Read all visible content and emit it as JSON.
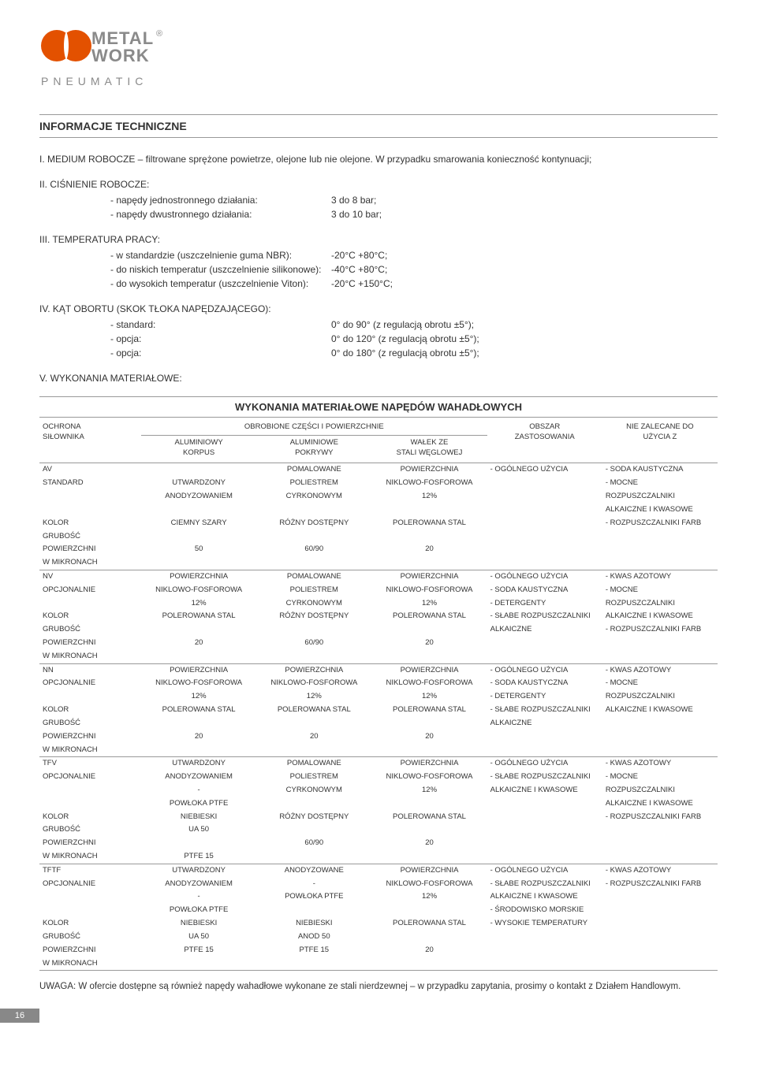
{
  "logo": {
    "brand1": "METAL",
    "brand2": "WORK",
    "sub": "P N E U M A T I C"
  },
  "title": "INFORMACJE TECHNICZNE",
  "sections": {
    "s1": {
      "lead": "I. MEDIUM ROBOCZE – filtrowane sprężone powietrze, olejone lub nie olejone. W przypadku smarowania konieczność kontynuacji;"
    },
    "s2": {
      "lead": "II. CIŚNIENIE ROBOCZE:",
      "rows": [
        {
          "l": "- napędy jednostronnego działania:",
          "v": "3 do 8 bar;"
        },
        {
          "l": "- napędy dwustronnego działania:",
          "v": "3 do 10 bar;"
        }
      ]
    },
    "s3": {
      "lead": "III. TEMPERATURA PRACY:",
      "rows": [
        {
          "l": "- w standardzie (uszczelnienie guma NBR):",
          "v": "-20°C +80°C;"
        },
        {
          "l": "- do niskich temperatur (uszczelnienie silikonowe):",
          "v": "-40°C +80°C;"
        },
        {
          "l": "- do wysokich temperatur (uszczelnienie Viton):",
          "v": "-20°C +150°C;"
        }
      ]
    },
    "s4": {
      "lead": "IV. KĄT OBORTU (SKOK TŁOKA NAPĘDZAJĄCEGO):",
      "rows": [
        {
          "l": "- standard:",
          "v": "0° do 90° (z regulacją obrotu ±5°);"
        },
        {
          "l": "- opcja:",
          "v": "0° do 120° (z regulacją obrotu ±5°);"
        },
        {
          "l": "- opcja:",
          "v": "0° do 180° (z regulacją obrotu ±5°);"
        }
      ]
    },
    "s5": {
      "lead": "V. WYKONANIA MATERIAŁOWE:"
    }
  },
  "tableTitle": "WYKONANIA MATERIAŁOWE NAPĘDÓW WAHADŁOWYCH",
  "headers": {
    "h0": "OCHRONA\nSIŁOWNIKA",
    "h1span": "OBROBIONE CZĘŚCI I POWIERZCHNIE",
    "h1": "ALUMINIOWY\nKORPUS",
    "h2": "ALUMINIOWE\nPOKRYWY",
    "h3": "WAŁEK ZE\nSTALI WĘGLOWEJ",
    "h4": "OBSZAR\nZASTOSOWANIA",
    "h5": "NIE ZALECANE DO\nUŻYCIA Z"
  },
  "groups": [
    {
      "rows": [
        [
          "AV",
          "",
          "POMALOWANE",
          "POWIERZCHNIA",
          "- OGÓLNEGO UŻYCIA",
          "- SODA KAUSTYCZNA"
        ],
        [
          "STANDARD",
          "UTWARDZONY",
          "POLIESTREM",
          "NIKLOWO-FOSFOROWA",
          "",
          "- MOCNE"
        ],
        [
          "",
          "ANODYZOWANIEM",
          "CYRKONOWYM",
          "12%",
          "",
          "ROZPUSZCZALNIKI"
        ],
        [
          "",
          "",
          "",
          "",
          "",
          "ALKAICZNE I KWASOWE"
        ],
        [
          "KOLOR",
          "CIEMNY SZARY",
          "RÓŻNY DOSTĘPNY",
          "POLEROWANA STAL",
          "",
          "- ROZPUSZCZALNIKI FARB"
        ],
        [
          "GRUBOŚĆ",
          "",
          "",
          "",
          "",
          ""
        ],
        [
          "POWIERZCHNI",
          "50",
          "60/90",
          "20",
          "",
          ""
        ],
        [
          "W MIKRONACH",
          "",
          "",
          "",
          "",
          ""
        ]
      ]
    },
    {
      "rows": [
        [
          "NV",
          "POWIERZCHNIA",
          "POMALOWANE",
          "POWIERZCHNIA",
          "- OGÓLNEGO UŻYCIA",
          "- KWAS AZOTOWY"
        ],
        [
          "OPCJONALNIE",
          "NIKLOWO-FOSFOROWA",
          "POLIESTREM",
          "NIKLOWO-FOSFOROWA",
          "- SODA KAUSTYCZNA",
          "- MOCNE"
        ],
        [
          "",
          "12%",
          "CYRKONOWYM",
          "12%",
          "- DETERGENTY",
          "ROZPUSZCZALNIKI"
        ],
        [
          "KOLOR",
          "POLEROWANA STAL",
          "RÓŻNY DOSTĘPNY",
          "POLEROWANA STAL",
          "- SŁABE ROZPUSZCZALNIKI",
          "ALKAICZNE I KWASOWE"
        ],
        [
          "GRUBOŚĆ",
          "",
          "",
          "",
          "ALKAICZNE",
          "- ROZPUSZCZALNIKI FARB"
        ],
        [
          "POWIERZCHNI",
          "20",
          "60/90",
          "20",
          "",
          ""
        ],
        [
          "W MIKRONACH",
          "",
          "",
          "",
          "",
          ""
        ]
      ]
    },
    {
      "rows": [
        [
          "NN",
          "POWIERZCHNIA",
          "POWIERZCHNIA",
          "POWIERZCHNIA",
          "- OGÓLNEGO UŻYCIA",
          "- KWAS AZOTOWY"
        ],
        [
          "OPCJONALNIE",
          "NIKLOWO-FOSFOROWA",
          "NIKLOWO-FOSFOROWA",
          "NIKLOWO-FOSFOROWA",
          "- SODA KAUSTYCZNA",
          "- MOCNE"
        ],
        [
          "",
          "12%",
          "12%",
          "12%",
          "- DETERGENTY",
          "ROZPUSZCZALNIKI"
        ],
        [
          "KOLOR",
          "POLEROWANA STAL",
          "POLEROWANA STAL",
          "POLEROWANA STAL",
          "- SŁABE ROZPUSZCZALNIKI",
          "ALKAICZNE I KWASOWE"
        ],
        [
          "GRUBOŚĆ",
          "",
          "",
          "",
          "ALKAICZNE",
          ""
        ],
        [
          "POWIERZCHNI",
          "20",
          "20",
          "20",
          "",
          ""
        ],
        [
          "W MIKRONACH",
          "",
          "",
          "",
          "",
          ""
        ]
      ]
    },
    {
      "rows": [
        [
          "TFV",
          "UTWARDZONY",
          "POMALOWANE",
          "POWIERZCHNIA",
          "- OGÓLNEGO UŻYCIA",
          "- KWAS AZOTOWY"
        ],
        [
          "OPCJONALNIE",
          "ANODYZOWANIEM",
          "POLIESTREM",
          "NIKLOWO-FOSFOROWA",
          "- SŁABE ROZPUSZCZALNIKI",
          "- MOCNE"
        ],
        [
          "",
          "-",
          "CYRKONOWYM",
          "12%",
          "ALKAICZNE I KWASOWE",
          "ROZPUSZCZALNIKI"
        ],
        [
          "",
          "POWŁOKA PTFE",
          "",
          "",
          "",
          "ALKAICZNE I KWASOWE"
        ],
        [
          "KOLOR",
          "NIEBIESKI",
          "RÓŻNY DOSTĘPNY",
          "POLEROWANA STAL",
          "",
          "- ROZPUSZCZALNIKI FARB"
        ],
        [
          "GRUBOŚĆ",
          "UA 50",
          "",
          "",
          "",
          ""
        ],
        [
          "POWIERZCHNI",
          "",
          "60/90",
          "20",
          "",
          ""
        ],
        [
          "W MIKRONACH",
          "PTFE 15",
          "",
          "",
          "",
          ""
        ]
      ]
    },
    {
      "rows": [
        [
          "TFTF",
          "UTWARDZONY",
          "ANODYZOWANE",
          "POWIERZCHNIA",
          "- OGÓLNEGO UŻYCIA",
          "- KWAS AZOTOWY"
        ],
        [
          "OPCJONALNIE",
          "ANODYZOWANIEM",
          "-",
          "NIKLOWO-FOSFOROWA",
          "- SŁABE ROZPUSZCZALNIKI",
          "- ROZPUSZCZALNIKI FARB"
        ],
        [
          "",
          "-",
          "POWŁOKA PTFE",
          "12%",
          "ALKAICZNE I KWASOWE",
          ""
        ],
        [
          "",
          "POWŁOKA PTFE",
          "",
          "",
          "- ŚRODOWISKO MORSKIE",
          ""
        ],
        [
          "KOLOR",
          "NIEBIESKI",
          "NIEBIESKI",
          "POLEROWANA STAL",
          "- WYSOKIE TEMPERATURY",
          ""
        ],
        [
          "GRUBOŚĆ",
          "UA 50",
          "ANOD 50",
          "",
          "",
          ""
        ],
        [
          "POWIERZCHNI",
          "PTFE 15",
          "PTFE 15",
          "20",
          "",
          ""
        ],
        [
          "W MIKRONACH",
          "",
          "",
          "",
          "",
          ""
        ]
      ]
    }
  ],
  "note": "UWAGA: W ofercie dostępne są również napędy wahadłowe wykonane ze stali nierdzewnej – w przypadku zapytania, prosimy o kontakt z Działem Handlowym.",
  "pageNum": "16",
  "colors": {
    "accent": "#e35100",
    "grey": "#8a8a8a",
    "line": "#9a9a9a"
  }
}
